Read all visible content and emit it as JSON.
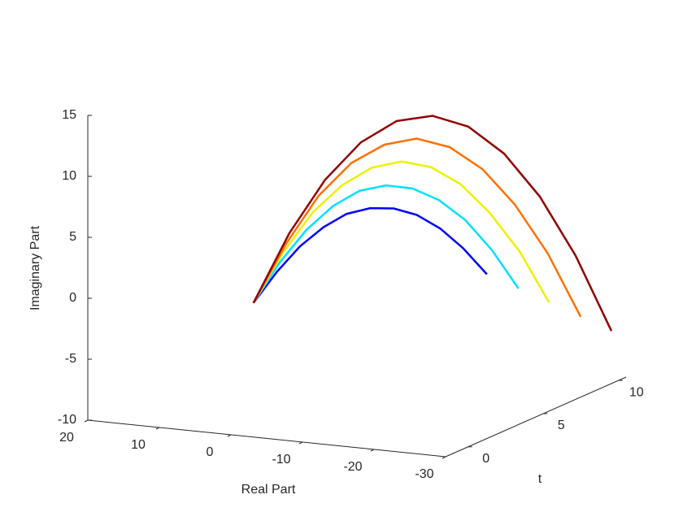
{
  "chart_data": {
    "type": "line3d",
    "xlabel": "Real Part",
    "ylabel": "t",
    "zlabel": "Imaginary Part",
    "xlim": [
      -30,
      20
    ],
    "xticks": [
      20,
      10,
      0,
      -10,
      -20,
      -30
    ],
    "ylim": [
      -1.5,
      10.5
    ],
    "yticks": [
      0,
      5,
      10
    ],
    "zlim": [
      -10,
      15
    ],
    "zticks": [
      -10,
      -5,
      0,
      5,
      10,
      15
    ],
    "t": [
      0,
      1,
      2,
      3,
      4,
      5,
      6,
      7,
      8,
      9,
      10
    ],
    "series": [
      {
        "color": "#0000ff",
        "real": [
          0,
          -1.2,
          -2.3,
          -3.5,
          -4.6,
          -5.8,
          -7.0,
          -8.1,
          -9.3,
          -10.4,
          -11.6
        ],
        "imag": [
          0,
          2.1,
          3.7,
          4.8,
          5.4,
          5.4,
          4.9,
          3.9,
          2.3,
          0.2,
          -2.4
        ]
      },
      {
        "color": "#00e0ff",
        "real": [
          0,
          -1.6,
          -3.2,
          -4.8,
          -6.4,
          -8.0,
          -9.6,
          -11.2,
          -12.8,
          -14.4,
          -16.0
        ],
        "imag": [
          0,
          2.9,
          5.1,
          6.6,
          7.4,
          7.4,
          6.7,
          5.3,
          3.2,
          0.3,
          -3.3
        ]
      },
      {
        "color": "#f0f000",
        "real": [
          0,
          -2.0,
          -4.1,
          -6.1,
          -8.1,
          -10.2,
          -12.2,
          -14.2,
          -16.2,
          -18.3,
          -20.3
        ],
        "imag": [
          0,
          3.7,
          6.6,
          8.4,
          9.4,
          9.5,
          8.6,
          6.8,
          4.0,
          0.4,
          -4.2
        ]
      },
      {
        "color": "#ff7000",
        "real": [
          0,
          -2.5,
          -4.9,
          -7.4,
          -9.9,
          -12.3,
          -14.8,
          -17.3,
          -19.7,
          -22.2,
          -24.7
        ],
        "imag": [
          0,
          4.5,
          8.0,
          10.3,
          11.4,
          11.5,
          10.4,
          8.2,
          4.9,
          0.5,
          -5.1
        ]
      },
      {
        "color": "#900000",
        "real": [
          0,
          -2.9,
          -5.8,
          -8.7,
          -11.6,
          -14.5,
          -17.4,
          -20.3,
          -23.2,
          -26.1,
          -29
        ],
        "imag": [
          0,
          5.34,
          9.36,
          12.06,
          13.44,
          13.5,
          12.24,
          9.66,
          5.76,
          0.54,
          -6
        ]
      }
    ]
  }
}
